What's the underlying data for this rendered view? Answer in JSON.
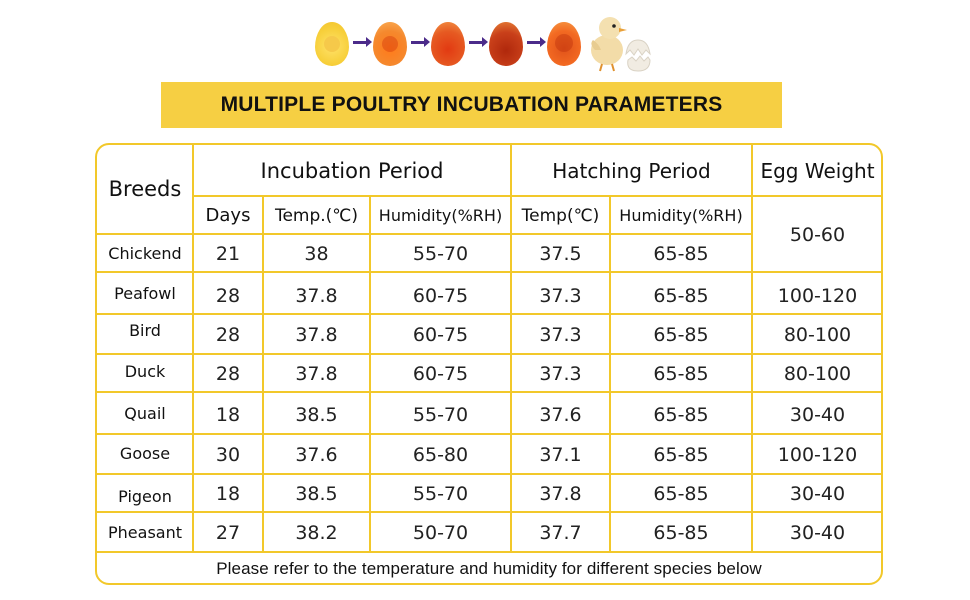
{
  "title": "MULTIPLE POULTRY INCUBATION PARAMETERS",
  "colors": {
    "accent": "#f6cf43",
    "border": "#f2c82a"
  },
  "header": {
    "breeds": "Breeds",
    "incubation_period": "Incubation Period",
    "hatching_period": "Hatching Period",
    "egg_weight": "Egg Weight",
    "days": "Days",
    "inc_temp": "Temp.(℃)",
    "inc_humidity": "Humidity(%RH)",
    "hatch_temp": "Temp(℃)",
    "hatch_humidity": "Humidity(%RH)"
  },
  "rows": [
    {
      "breed": "Chickend",
      "days": "21",
      "inc_temp": "38",
      "inc_humidity": "55-70",
      "hatch_temp": "37.5",
      "hatch_humidity": "65-85",
      "egg_weight": "50-60"
    },
    {
      "breed": "Peafowl",
      "days": "28",
      "inc_temp": "37.8",
      "inc_humidity": "60-75",
      "hatch_temp": "37.3",
      "hatch_humidity": "65-85",
      "egg_weight": "100-120"
    },
    {
      "breed": "Bird",
      "days": "28",
      "inc_temp": "37.8",
      "inc_humidity": "60-75",
      "hatch_temp": "37.3",
      "hatch_humidity": "65-85",
      "egg_weight": "80-100"
    },
    {
      "breed": "Duck",
      "days": "28",
      "inc_temp": "37.8",
      "inc_humidity": "60-75",
      "hatch_temp": "37.3",
      "hatch_humidity": "65-85",
      "egg_weight": "80-100"
    },
    {
      "breed": "Quail",
      "days": "18",
      "inc_temp": "38.5",
      "inc_humidity": "55-70",
      "hatch_temp": "37.6",
      "hatch_humidity": "65-85",
      "egg_weight": "30-40"
    },
    {
      "breed": "Goose",
      "days": "30",
      "inc_temp": "37.6",
      "inc_humidity": "65-80",
      "hatch_temp": "37.1",
      "hatch_humidity": "65-85",
      "egg_weight": "100-120"
    },
    {
      "breed": "Pigeon",
      "days": "18",
      "inc_temp": "38.5",
      "inc_humidity": "55-70",
      "hatch_temp": "37.8",
      "hatch_humidity": "65-85",
      "egg_weight": "30-40"
    },
    {
      "breed": "Pheasant",
      "days": "27",
      "inc_temp": "38.2",
      "inc_humidity": "50-70",
      "hatch_temp": "37.7",
      "hatch_humidity": "65-85",
      "egg_weight": "30-40"
    }
  ],
  "footer": "Please refer to the temperature and humidity for different species below",
  "icons": [
    "egg-day-1-icon",
    "egg-day-5-icon",
    "egg-day-10-icon",
    "egg-day-15-icon",
    "egg-day-18-icon",
    "chick-icon",
    "eggshell-icon",
    "arrow-icon"
  ]
}
